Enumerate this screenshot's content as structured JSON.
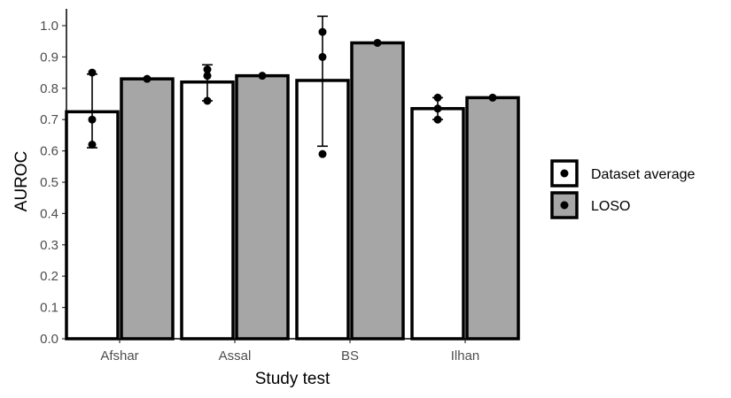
{
  "chart_data": {
    "type": "bar",
    "xlabel": "Study test",
    "ylabel": "AUROC",
    "ylim": [
      0,
      1.0
    ],
    "yticks": [
      "0.0",
      "0.1",
      "0.2",
      "0.3",
      "0.4",
      "0.5",
      "0.6",
      "0.7",
      "0.8",
      "0.9",
      "1.0"
    ],
    "categories": [
      "Afshar",
      "Assal",
      "BS",
      "Ilhan"
    ],
    "series": [
      {
        "name": "Dataset average",
        "color": "#ffffff",
        "values": [
          0.725,
          0.82,
          0.825,
          0.735
        ],
        "error_low": [
          0.61,
          0.76,
          0.615,
          0.7
        ],
        "error_high": [
          0.845,
          0.875,
          1.03,
          0.77
        ],
        "points": [
          [
            0.85,
            0.7,
            0.62
          ],
          [
            0.86,
            0.84,
            0.76
          ],
          [
            0.98,
            0.9,
            0.59
          ],
          [
            0.77,
            0.735,
            0.7
          ]
        ]
      },
      {
        "name": "LOSO",
        "color": "#a6a6a6",
        "values": [
          0.83,
          0.84,
          0.945,
          0.77
        ],
        "points": [
          [
            0.83
          ],
          [
            0.84
          ],
          [
            0.945
          ],
          [
            0.77
          ]
        ]
      }
    ],
    "legend_position": "right",
    "grid": false
  }
}
